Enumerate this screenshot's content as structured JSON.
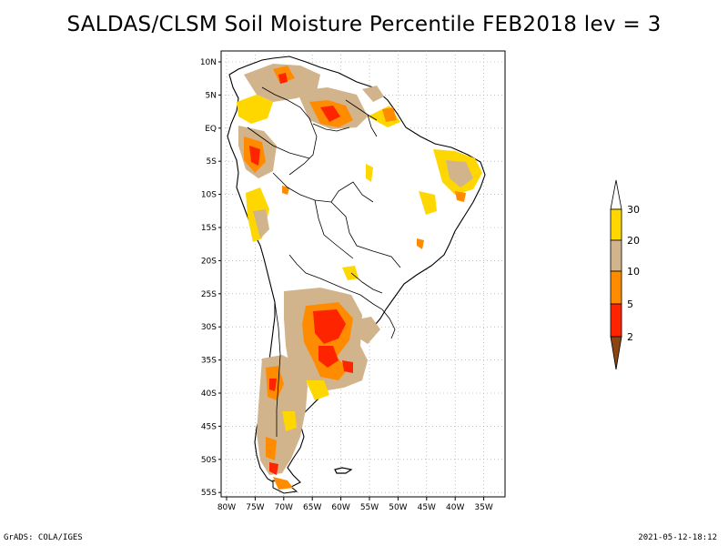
{
  "title": "SALDAS/CLSM Soil Moisture Percentile FEB2018 lev = 3",
  "footer": {
    "left": "GrADS: COLA/IGES",
    "right": "2021-05-12-18:12"
  },
  "map": {
    "lat_labels": [
      "10N",
      "5N",
      "EQ",
      "5S",
      "10S",
      "15S",
      "20S",
      "25S",
      "30S",
      "35S",
      "40S",
      "45S",
      "50S",
      "55S"
    ],
    "lon_labels": [
      "80W",
      "75W",
      "70W",
      "65W",
      "60W",
      "55W",
      "50W",
      "45W",
      "40W",
      "35W"
    ],
    "lon_range": [
      -80,
      -33
    ],
    "lat_range": [
      -56,
      12
    ],
    "grid": true
  },
  "legend": {
    "labels": [
      "30",
      "20",
      "10",
      "5",
      "2"
    ],
    "colors": {
      "over30": "#ffffff",
      "c20_30": "#ffd700",
      "c10_20": "#d2b48c",
      "c5_10": "#ff8c00",
      "c2_5": "#ff2400",
      "under2": "#8b4513"
    }
  },
  "outline_color": "#000000"
}
